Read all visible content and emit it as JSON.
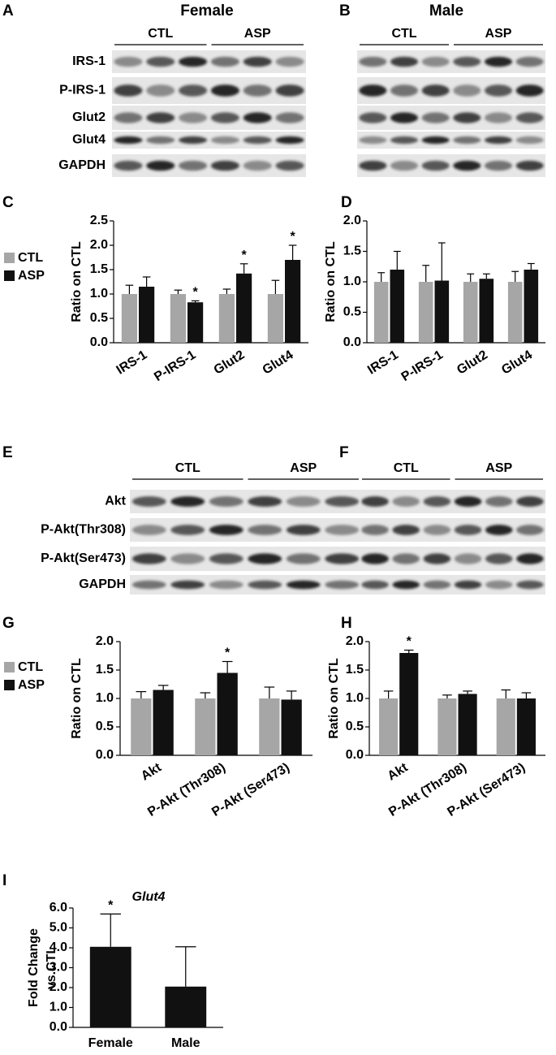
{
  "blots": [
    {
      "label": "A",
      "title": "Female",
      "groups": [
        "CTL",
        "ASP"
      ],
      "rows": [
        "IRS-1",
        "P-IRS-1",
        "Glut2",
        "Glut4",
        "GAPDH"
      ]
    },
    {
      "label": "B",
      "title": "Male",
      "groups": [
        "CTL",
        "ASP"
      ]
    },
    {
      "label": "E",
      "groups": [
        "CTL",
        "ASP"
      ],
      "rows": [
        "Akt",
        "P-Akt(Thr308)",
        "P-Akt(Ser473)",
        "GAPDH"
      ]
    },
    {
      "label": "F",
      "groups": [
        "CTL",
        "ASP"
      ]
    }
  ],
  "chart_data": [
    {
      "label": "C",
      "type": "bar",
      "ylabel": "Ratio on CTL",
      "categories": [
        "IRS-1",
        "P-IRS-1",
        "Glut2",
        "Glut4"
      ],
      "series": [
        {
          "name": "CTL",
          "color": "#a6a6a6",
          "values": [
            1.0,
            1.0,
            1.0,
            1.0
          ],
          "errors": [
            0.18,
            0.08,
            0.1,
            0.28
          ]
        },
        {
          "name": "ASP",
          "color": "#111111",
          "values": [
            1.15,
            0.83,
            1.42,
            1.7
          ],
          "errors": [
            0.2,
            0.03,
            0.2,
            0.3
          ],
          "significance": [
            null,
            "*",
            "*",
            "*"
          ]
        }
      ],
      "ylim": [
        0,
        2.5
      ],
      "yticks": [
        {
          "value": 0,
          "label": "0.0"
        },
        {
          "value": 0.5,
          "label": "0.5"
        },
        {
          "value": 1,
          "label": "1.0"
        },
        {
          "value": 1.5,
          "label": "1.5"
        },
        {
          "value": 2,
          "label": "2.0"
        },
        {
          "value": 2.5,
          "label": "2.5"
        }
      ],
      "legend": "left"
    },
    {
      "label": "D",
      "type": "bar",
      "ylabel": "Ratio on CTL",
      "categories": [
        "IRS-1",
        "P-IRS-1",
        "Glut2",
        "Glut4"
      ],
      "series": [
        {
          "color": "#a6a6a6",
          "values": [
            1.0,
            1.0,
            1.0,
            1.0
          ],
          "errors": [
            0.15,
            0.27,
            0.13,
            0.17
          ]
        },
        {
          "color": "#111111",
          "values": [
            1.2,
            1.02,
            1.05,
            1.2
          ],
          "errors": [
            0.3,
            0.62,
            0.08,
            0.1
          ]
        }
      ],
      "ylim": [
        0,
        2
      ],
      "yticks": [
        {
          "value": 0,
          "label": "0.0"
        },
        {
          "value": 0.5,
          "label": "0.5"
        },
        {
          "value": 1,
          "label": "1.0"
        },
        {
          "value": 1.5,
          "label": "1.5"
        },
        {
          "value": 2,
          "label": "2.0"
        }
      ]
    },
    {
      "label": "G",
      "type": "bar",
      "ylabel": "Ratio on CTL",
      "categories": [
        "Akt",
        "P-Akt (Thr308)",
        "P-Akt (Ser473)"
      ],
      "series": [
        {
          "name": "CTL",
          "color": "#a6a6a6",
          "values": [
            1.0,
            1.0,
            1.0
          ],
          "errors": [
            0.12,
            0.1,
            0.2
          ]
        },
        {
          "name": "ASP",
          "color": "#111111",
          "values": [
            1.15,
            1.45,
            0.98
          ],
          "errors": [
            0.08,
            0.2,
            0.15
          ],
          "significance": [
            null,
            "*",
            null
          ]
        }
      ],
      "ylim": [
        0,
        2
      ],
      "yticks": [
        {
          "value": 0,
          "label": "0.0"
        },
        {
          "value": 0.5,
          "label": "0.5"
        },
        {
          "value": 1,
          "label": "1.0"
        },
        {
          "value": 1.5,
          "label": "1.5"
        },
        {
          "value": 2,
          "label": "2.0"
        }
      ],
      "legend": "left"
    },
    {
      "label": "H",
      "type": "bar",
      "ylabel": "Ratio on CTL",
      "categories": [
        "Akt",
        "P-Akt (Thr308)",
        "P-Akt (Ser473)"
      ],
      "series": [
        {
          "color": "#a6a6a6",
          "values": [
            1.0,
            1.0,
            1.0
          ],
          "errors": [
            0.13,
            0.06,
            0.15
          ]
        },
        {
          "color": "#111111",
          "values": [
            1.8,
            1.08,
            1.0
          ],
          "errors": [
            0.05,
            0.05,
            0.1
          ],
          "significance": [
            "*",
            null,
            null
          ]
        }
      ],
      "ylim": [
        0,
        2
      ],
      "yticks": [
        {
          "value": 0,
          "label": "0.0"
        },
        {
          "value": 0.5,
          "label": "0.5"
        },
        {
          "value": 1,
          "label": "1.0"
        },
        {
          "value": 1.5,
          "label": "1.5"
        },
        {
          "value": 2,
          "label": "2.0"
        }
      ]
    },
    {
      "label": "I",
      "type": "bar",
      "title": "Glut4",
      "ylabel": [
        "Fold Change",
        "vs.CTL"
      ],
      "categories": [
        "Female",
        "Male"
      ],
      "series": [
        {
          "color": "#111111",
          "values": [
            4.05,
            2.05
          ],
          "errors": [
            1.65,
            2.0
          ],
          "significance": [
            "*",
            null
          ]
        }
      ],
      "ylim": [
        0,
        6
      ],
      "yticks": [
        {
          "value": 0,
          "label": "0.0"
        },
        {
          "value": 1,
          "label": "1.0"
        },
        {
          "value": 2,
          "label": "2.0"
        },
        {
          "value": 3,
          "label": "3.0"
        },
        {
          "value": 4,
          "label": "4.0"
        },
        {
          "value": 5,
          "label": "5.0"
        },
        {
          "value": 6,
          "label": "6.0"
        }
      ]
    }
  ]
}
